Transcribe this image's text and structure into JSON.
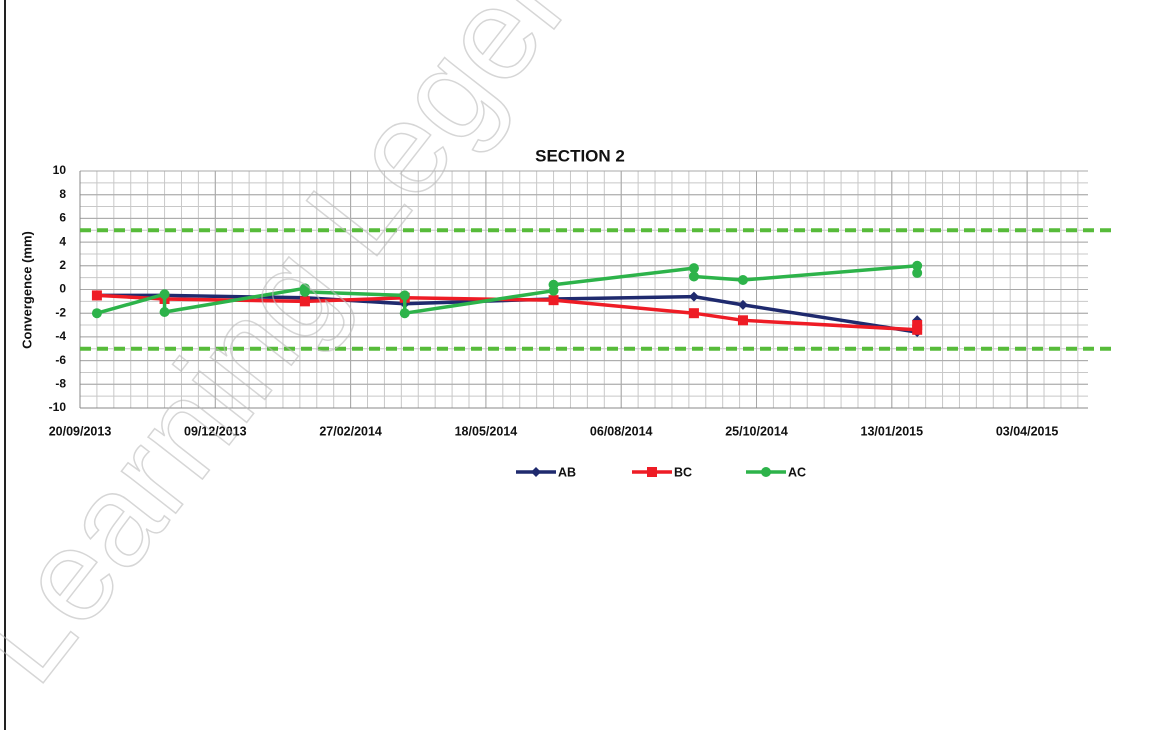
{
  "chart_data": {
    "type": "line",
    "title": "SECTION 2",
    "y_label": "Convergence (mm)",
    "watermark": "Learning Legends",
    "xlim": [
      "2013-09-20",
      "2015-05-09"
    ],
    "xticks": [
      {
        "value": "2013-09-20",
        "label": "20/09/2013"
      },
      {
        "value": "2013-12-09",
        "label": "09/12/2013"
      },
      {
        "value": "2014-02-27",
        "label": "27/02/2014"
      },
      {
        "value": "2014-05-18",
        "label": "18/05/2014"
      },
      {
        "value": "2014-08-06",
        "label": "06/08/2014"
      },
      {
        "value": "2014-10-25",
        "label": "25/10/2014"
      },
      {
        "value": "2015-01-13",
        "label": "13/01/2015"
      },
      {
        "value": "2015-04-03",
        "label": "03/04/2015"
      }
    ],
    "ylim": [
      -10,
      10
    ],
    "yticks": [
      -10,
      -8,
      -6,
      -4,
      -2,
      0,
      2,
      4,
      6,
      8,
      10
    ],
    "grid": true,
    "minor_grid": true,
    "legend": "bottom",
    "reference_lines": {
      "values": [
        5,
        -5
      ],
      "color": "#57bb3a"
    },
    "series": [
      {
        "name": "AB",
        "color": "#1f2a6e",
        "marker": "diamond",
        "x": [
          "2013-09-30",
          "2013-11-09",
          "2014-01-31",
          "2014-03-31",
          "2014-06-27",
          "2014-09-18",
          "2014-10-17",
          "2015-01-28",
          "2015-01-28"
        ],
        "values": [
          -0.5,
          -0.5,
          -0.7,
          -1.2,
          -0.8,
          -0.6,
          -1.3,
          -3.6,
          -2.6
        ]
      },
      {
        "name": "BC",
        "color": "#ee1c25",
        "marker": "square",
        "x": [
          "2013-09-30",
          "2013-11-09",
          "2014-01-31",
          "2014-03-31",
          "2014-06-27",
          "2014-09-18",
          "2014-10-17",
          "2015-01-28",
          "2015-01-28"
        ],
        "values": [
          -0.5,
          -0.8,
          -1.0,
          -0.7,
          -0.9,
          -2.0,
          -2.6,
          -3.4,
          -3.0
        ]
      },
      {
        "name": "AC",
        "color": "#2db34a",
        "marker": "circle",
        "x": [
          "2013-09-30",
          "2013-11-09",
          "2013-11-09",
          "2014-01-31",
          "2014-01-31",
          "2014-03-31",
          "2014-03-31",
          "2014-06-27",
          "2014-06-27",
          "2014-09-18",
          "2014-09-18",
          "2014-10-17",
          "2015-01-28",
          "2015-01-28"
        ],
        "values": [
          -2.0,
          -0.4,
          -1.9,
          0.1,
          -0.2,
          -0.5,
          -2.0,
          -0.1,
          0.4,
          1.8,
          1.1,
          0.8,
          2.0,
          1.4
        ]
      }
    ]
  }
}
